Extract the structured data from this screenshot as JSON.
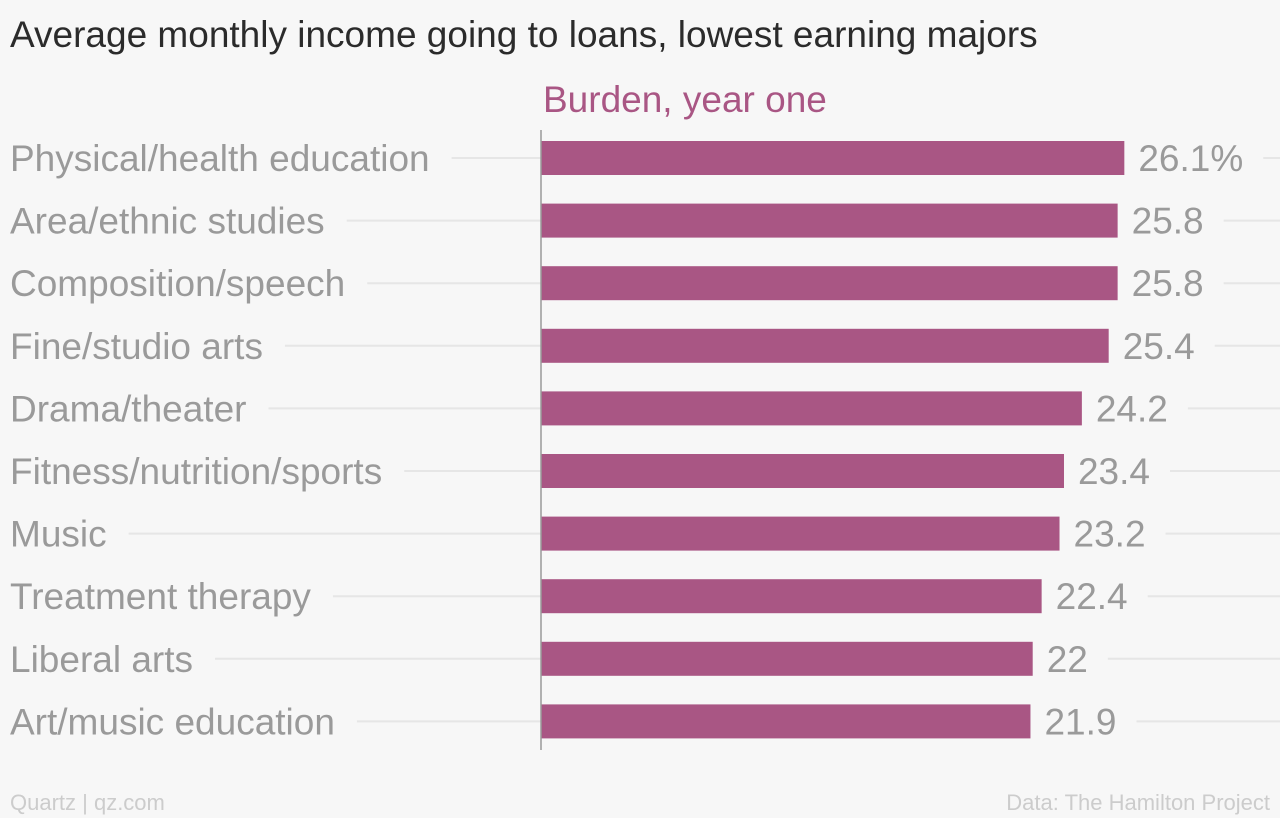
{
  "title": "Average monthly income going to loans, lowest earning majors",
  "footer": {
    "source_left": "Quartz | qz.com",
    "source_right": "Data: The Hamilton Project"
  },
  "chart_data": {
    "type": "bar",
    "orientation": "horizontal",
    "series_label": "Burden, year one",
    "categories": [
      "Physical/health education",
      "Area/ethnic studies",
      "Composition/speech",
      "Fine/studio arts",
      "Drama/theater",
      "Fitness/nutrition/sports",
      "Music",
      "Treatment therapy",
      "Liberal arts",
      "Art/music education"
    ],
    "values": [
      26.1,
      25.8,
      25.8,
      25.4,
      24.2,
      23.4,
      23.2,
      22.4,
      22,
      21.9
    ],
    "value_labels": [
      "26.1%",
      "25.8",
      "25.8",
      "25.4",
      "24.2",
      "23.4",
      "23.2",
      "22.4",
      "22",
      "21.9"
    ],
    "grid": true,
    "colors": {
      "bar": "#a95684",
      "series_label": "#a95684",
      "category_label": "#9a9a9a",
      "value_label": "#9a9a9a",
      "gridline": "#e6e6e6",
      "axis": "#9a9a9a"
    }
  }
}
